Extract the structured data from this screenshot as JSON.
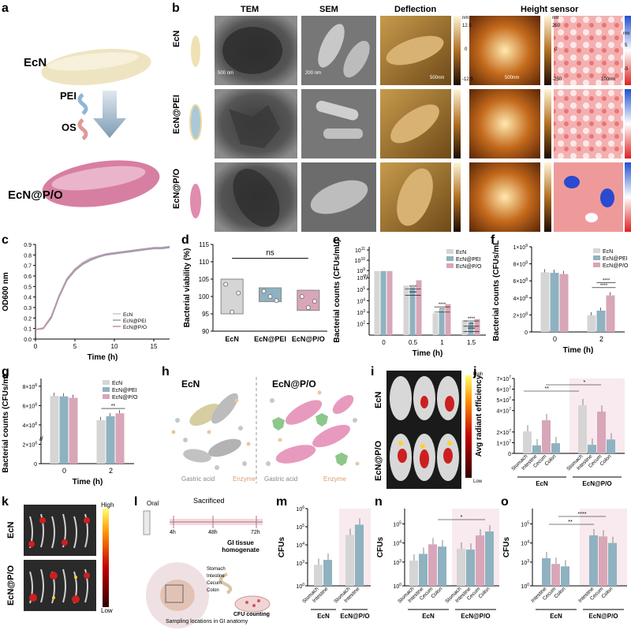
{
  "panel_labels": {
    "a": "a",
    "b": "b",
    "c": "c",
    "d": "d",
    "e": "e",
    "f": "f",
    "g": "g",
    "h": "h",
    "i": "i",
    "j": "j",
    "k": "k",
    "l": "l",
    "m": "m",
    "n": "n",
    "o": "o"
  },
  "panel_a": {
    "ecn": "EcN",
    "pei": "PEI",
    "os": "OS",
    "ecn_po": "EcN@P/O"
  },
  "panel_b": {
    "col_headers": [
      "TEM",
      "SEM",
      "Deflection",
      "Height sensor"
    ],
    "row_labels": [
      "EcN",
      "EcN@PEI",
      "EcN@P/O"
    ],
    "tem_scale": "500 nm",
    "sem_scale": "200 nm",
    "afm_scale": "500nm",
    "zoom_scale": "100nm",
    "defl_unit": "nm",
    "defl_max": "12.5",
    "defl_mid": "0",
    "defl_min": "-12.5",
    "height_unit": "nm",
    "height_max": "250",
    "height_mid": "0",
    "height_min": "-250",
    "zoom_unit": "nm",
    "zoom_max": "5",
    "zoom_min": "-5"
  },
  "colors": {
    "ecn": "#d5d5d5",
    "ecn_pei": "#8fb2c0",
    "ecn_po": "#d8a6b8",
    "ecn_line": "#c8c8c8",
    "pei_line": "#8aa6b4",
    "po_line": "#c48fa6",
    "bg_tint": "#f8eaee"
  },
  "chart_data": [
    {
      "id": "c",
      "type": "line",
      "xlabel": "Time (h)",
      "ylabel": "OD600 nm",
      "xlim": [
        0,
        17
      ],
      "ylim": [
        0,
        0.9
      ],
      "xticks": [
        "0",
        "5",
        "10",
        "15"
      ],
      "yticks": [
        "0.0",
        "0.1",
        "0.2",
        "0.3",
        "0.4",
        "0.5",
        "0.6",
        "0.7",
        "0.8",
        "0.9"
      ],
      "x": [
        0,
        1,
        2,
        3,
        4,
        5,
        6,
        7,
        8,
        9,
        10,
        11,
        12,
        13,
        14,
        15,
        16,
        17
      ],
      "series": [
        {
          "name": "EcN",
          "values": [
            0.09,
            0.11,
            0.22,
            0.42,
            0.58,
            0.67,
            0.73,
            0.77,
            0.79,
            0.81,
            0.82,
            0.83,
            0.84,
            0.85,
            0.86,
            0.86,
            0.87,
            0.88
          ]
        },
        {
          "name": "EcN@PEI",
          "values": [
            0.09,
            0.1,
            0.2,
            0.4,
            0.56,
            0.65,
            0.71,
            0.75,
            0.78,
            0.8,
            0.81,
            0.82,
            0.83,
            0.84,
            0.85,
            0.86,
            0.86,
            0.87
          ]
        },
        {
          "name": "EcN@P/O",
          "values": [
            0.09,
            0.1,
            0.21,
            0.41,
            0.57,
            0.66,
            0.72,
            0.76,
            0.79,
            0.81,
            0.82,
            0.83,
            0.84,
            0.85,
            0.86,
            0.87,
            0.87,
            0.88
          ]
        }
      ]
    },
    {
      "id": "d",
      "type": "box",
      "ylabel": "Bacterial viability (%)",
      "ylim": [
        90,
        115
      ],
      "yticks": [
        "90",
        "95",
        "100",
        "105",
        "110",
        "115"
      ],
      "categories": [
        "EcN",
        "EcN@PEI",
        "EcN@P/O"
      ],
      "boxes": [
        {
          "q1": 95,
          "q3": 105,
          "points": [
            103.5,
            95.5,
            101
          ]
        },
        {
          "q1": 98.5,
          "q3": 102.5,
          "points": [
            101.5,
            100,
            98.8
          ]
        },
        {
          "q1": 96,
          "q3": 101.8,
          "points": [
            100,
            96.8,
            98.6
          ]
        }
      ],
      "annotation": "ns"
    },
    {
      "id": "e",
      "type": "bar",
      "xlabel": "Time (h)",
      "ylabel": "Bacterial counts (CFUs/mL)",
      "categories": [
        "0",
        "0.5",
        "1",
        "1.5"
      ],
      "yticks": [
        "10^2",
        "10^3",
        "10^4",
        "10^5",
        "10^6",
        "10^9",
        "10^10",
        "10^11"
      ],
      "series": [
        {
          "name": "EcN",
          "values": [
            "9e8",
            "2e5",
            "8e2",
            "2e2"
          ]
        },
        {
          "name": "EcN@PEI",
          "values": [
            "9e8",
            "1.5e5",
            "1.5e3",
            "1.3e2"
          ]
        },
        {
          "name": "EcN@P/O",
          "values": [
            "9e8",
            "6e5",
            "5e3",
            "2.5e2"
          ]
        }
      ],
      "annotations": [
        "****",
        "****",
        "****",
        "***",
        "****",
        "**",
        "****"
      ]
    },
    {
      "id": "f",
      "type": "bar",
      "xlabel": "Time (h)",
      "ylabel": "Bacterial counts (CFUs/mL)",
      "categories": [
        "0",
        "2"
      ],
      "yticks": [
        "0",
        "2×10^8",
        "4×10^8",
        "6×10^8",
        "8×10^8",
        "1×10^9"
      ],
      "series": [
        {
          "name": "EcN",
          "values": [
            700000000.0,
            195000000.0
          ]
        },
        {
          "name": "EcN@PEI",
          "values": [
            695000000.0,
            250000000.0
          ]
        },
        {
          "name": "EcN@P/O",
          "values": [
            680000000.0,
            430000000.0
          ]
        }
      ],
      "annotations": [
        "****",
        "****"
      ]
    },
    {
      "id": "g",
      "type": "bar",
      "xlabel": "Time (h)",
      "ylabel": "Bacterial counts (CFUs/mL)",
      "categories": [
        "0",
        "2"
      ],
      "yticks": [
        "0",
        "2×10^8",
        "4×10^8",
        "6×10^8",
        "8×10^8"
      ],
      "series": [
        {
          "name": "EcN",
          "values": [
            700000000.0,
            450000000.0
          ]
        },
        {
          "name": "EcN@PEI",
          "values": [
            695000000.0,
            490000000.0
          ]
        },
        {
          "name": "EcN@P/O",
          "values": [
            680000000.0,
            520000000.0
          ]
        }
      ],
      "annotations": [
        "**"
      ]
    },
    {
      "id": "j",
      "type": "bar",
      "ylabel": "Avg radiant efficiency",
      "categories": [
        "Stomach",
        "Intestine",
        "Cecum",
        "Colon"
      ],
      "groups": [
        "EcN",
        "EcN@P/O"
      ],
      "yticks": [
        "0",
        "1×10^7",
        "2×10^7",
        "4×10^7",
        "5×10^7",
        "6×10^7",
        "7×10^7"
      ],
      "series": [
        {
          "name": "EcN",
          "values": [
            20500000.0,
            7500000.0,
            31000000.0,
            9500000.0
          ]
        },
        {
          "name": "EcN@P/O",
          "values": [
            45000000.0,
            8000000.0,
            39000000.0,
            13000000.0
          ]
        }
      ],
      "annotations": [
        "**",
        "*"
      ]
    },
    {
      "id": "m",
      "type": "bar",
      "ylabel": "CFUs",
      "categories": [
        "Stomach",
        "Intestine"
      ],
      "groups": [
        "EcN",
        "EcN@P/O"
      ],
      "yticks": [
        "10^0",
        "10^3",
        "10^4",
        "10^5",
        "10^6"
      ],
      "series": [
        {
          "name": "EcN",
          "values": [
            800,
            1500
          ]
        },
        {
          "name": "EcN@P/O",
          "values": [
            35000,
            130000
          ]
        }
      ]
    },
    {
      "id": "n",
      "type": "bar",
      "ylabel": "CFUs",
      "categories": [
        "Stomach",
        "Intestine",
        "Cecum",
        "Colon"
      ],
      "groups": [
        "EcN",
        "EcN@P/O"
      ],
      "yticks": [
        "10^0",
        "10^3",
        "10^4",
        "10^5"
      ],
      "series": [
        {
          "name": "EcN",
          "values": [
            1200,
            2700,
            8500,
            6500
          ]
        },
        {
          "name": "EcN@P/O",
          "values": [
            5000,
            4500,
            25000,
            40000
          ]
        }
      ],
      "annotations": [
        "*"
      ]
    },
    {
      "id": "o",
      "type": "bar",
      "ylabel": "CFUs",
      "categories": [
        "Intestine",
        "Cecum",
        "Colon"
      ],
      "groups": [
        "EcN",
        "EcN@P/O"
      ],
      "yticks": [
        "10^0",
        "10^3",
        "10^4",
        "10^5"
      ],
      "series": [
        {
          "name": "EcN",
          "values": [
            1600,
            800,
            600
          ]
        },
        {
          "name": "EcN@P/O",
          "values": [
            25000,
            22000,
            10000
          ]
        }
      ],
      "annotations": [
        "**",
        "****"
      ]
    }
  ],
  "panel_h": {
    "left_title": "EcN",
    "right_title": "EcN@P/O",
    "gastric": "Gastric acid",
    "enzyme": "Enzyme"
  },
  "panel_i": {
    "row1": "EcN",
    "row2": "EcN@P/O",
    "high": "High",
    "low": "Low"
  },
  "panel_k": {
    "row1": "EcN",
    "row2": "EcN@P/O",
    "high": "High",
    "low": "Low"
  },
  "panel_l": {
    "oral": "Oral",
    "sacrificed": "Sacrificed",
    "t1": "4h",
    "t2": "48h",
    "t3": "72h",
    "homogenate": "GI tissue homogenate",
    "sites": [
      "Stomach",
      "Intestine",
      "Cecum",
      "Colon"
    ],
    "cfu": "CFU counting",
    "sampling": "Sampling locations in GI anatomy"
  }
}
